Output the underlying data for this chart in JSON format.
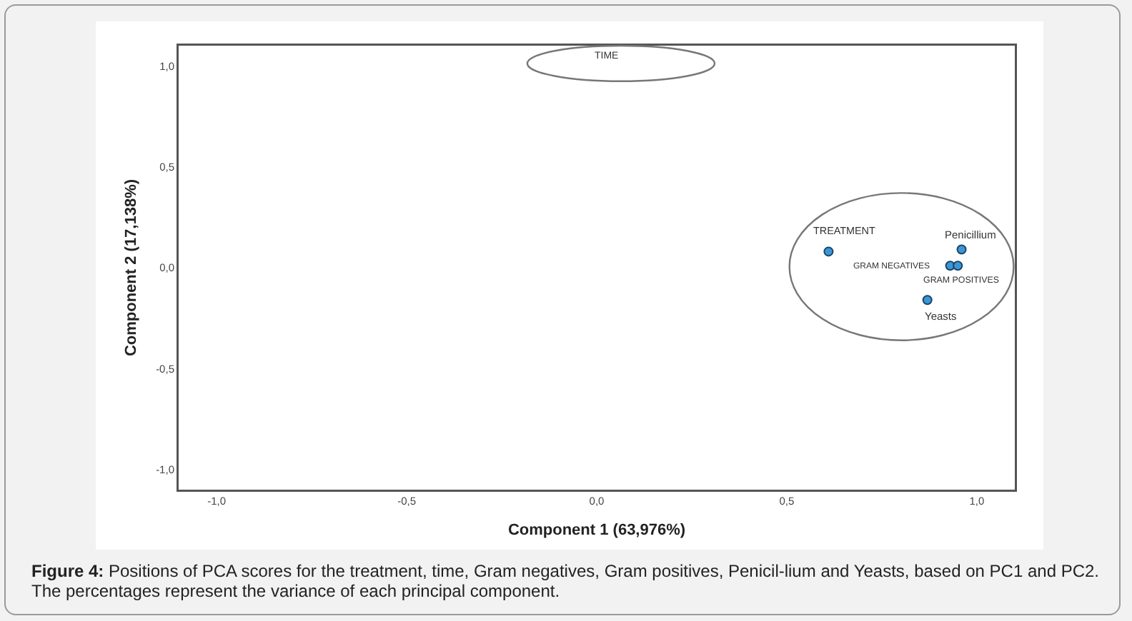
{
  "chart_data": {
    "type": "scatter",
    "xlabel": "Component 1 (63,976%)",
    "ylabel": "Component 2 (17,138%)",
    "xlim": [
      -1.1,
      1.1
    ],
    "ylim": [
      -1.1,
      1.1
    ],
    "xticks": [
      {
        "value": -1,
        "label": "-1,0"
      },
      {
        "value": -0.5,
        "label": "-0,5"
      },
      {
        "value": 0,
        "label": "0,0"
      },
      {
        "value": 0.5,
        "label": "0,5"
      },
      {
        "value": 1,
        "label": "1,0"
      }
    ],
    "yticks": [
      {
        "value": -1,
        "label": "-1,0"
      },
      {
        "value": -0.5,
        "label": "-0,5"
      },
      {
        "value": 0,
        "label": "0,0"
      },
      {
        "value": 0.5,
        "label": "0,5"
      },
      {
        "value": 1,
        "label": "1,0"
      }
    ],
    "marker": "circle",
    "series": [
      {
        "name": "TREATMENT",
        "color": "#3a97d6",
        "x": [
          0.61
        ],
        "values": [
          0.08
        ]
      },
      {
        "name": "Penicillium",
        "color": "#3a97d6",
        "x": [
          0.96
        ],
        "values": [
          0.09
        ]
      },
      {
        "name": "GRAM NEGATIVES",
        "color": "#3a97d6",
        "x": [
          0.93
        ],
        "values": [
          0.01
        ]
      },
      {
        "name": "GRAM POSITIVES",
        "color": "#3a97d6",
        "x": [
          0.95
        ],
        "values": [
          0.01
        ]
      },
      {
        "name": "Yeasts",
        "color": "#3a97d6",
        "x": [
          0.87
        ],
        "values": [
          -0.16
        ]
      }
    ],
    "annotations": [
      "TIME",
      "Figure 4: Positions of PCA scores for the treatment, time, Gram negatives, Gram positives, Penicil-lium and Yeasts, based on PC1 and PC2. The percentages represent the variance of each principal component."
    ]
  }
}
